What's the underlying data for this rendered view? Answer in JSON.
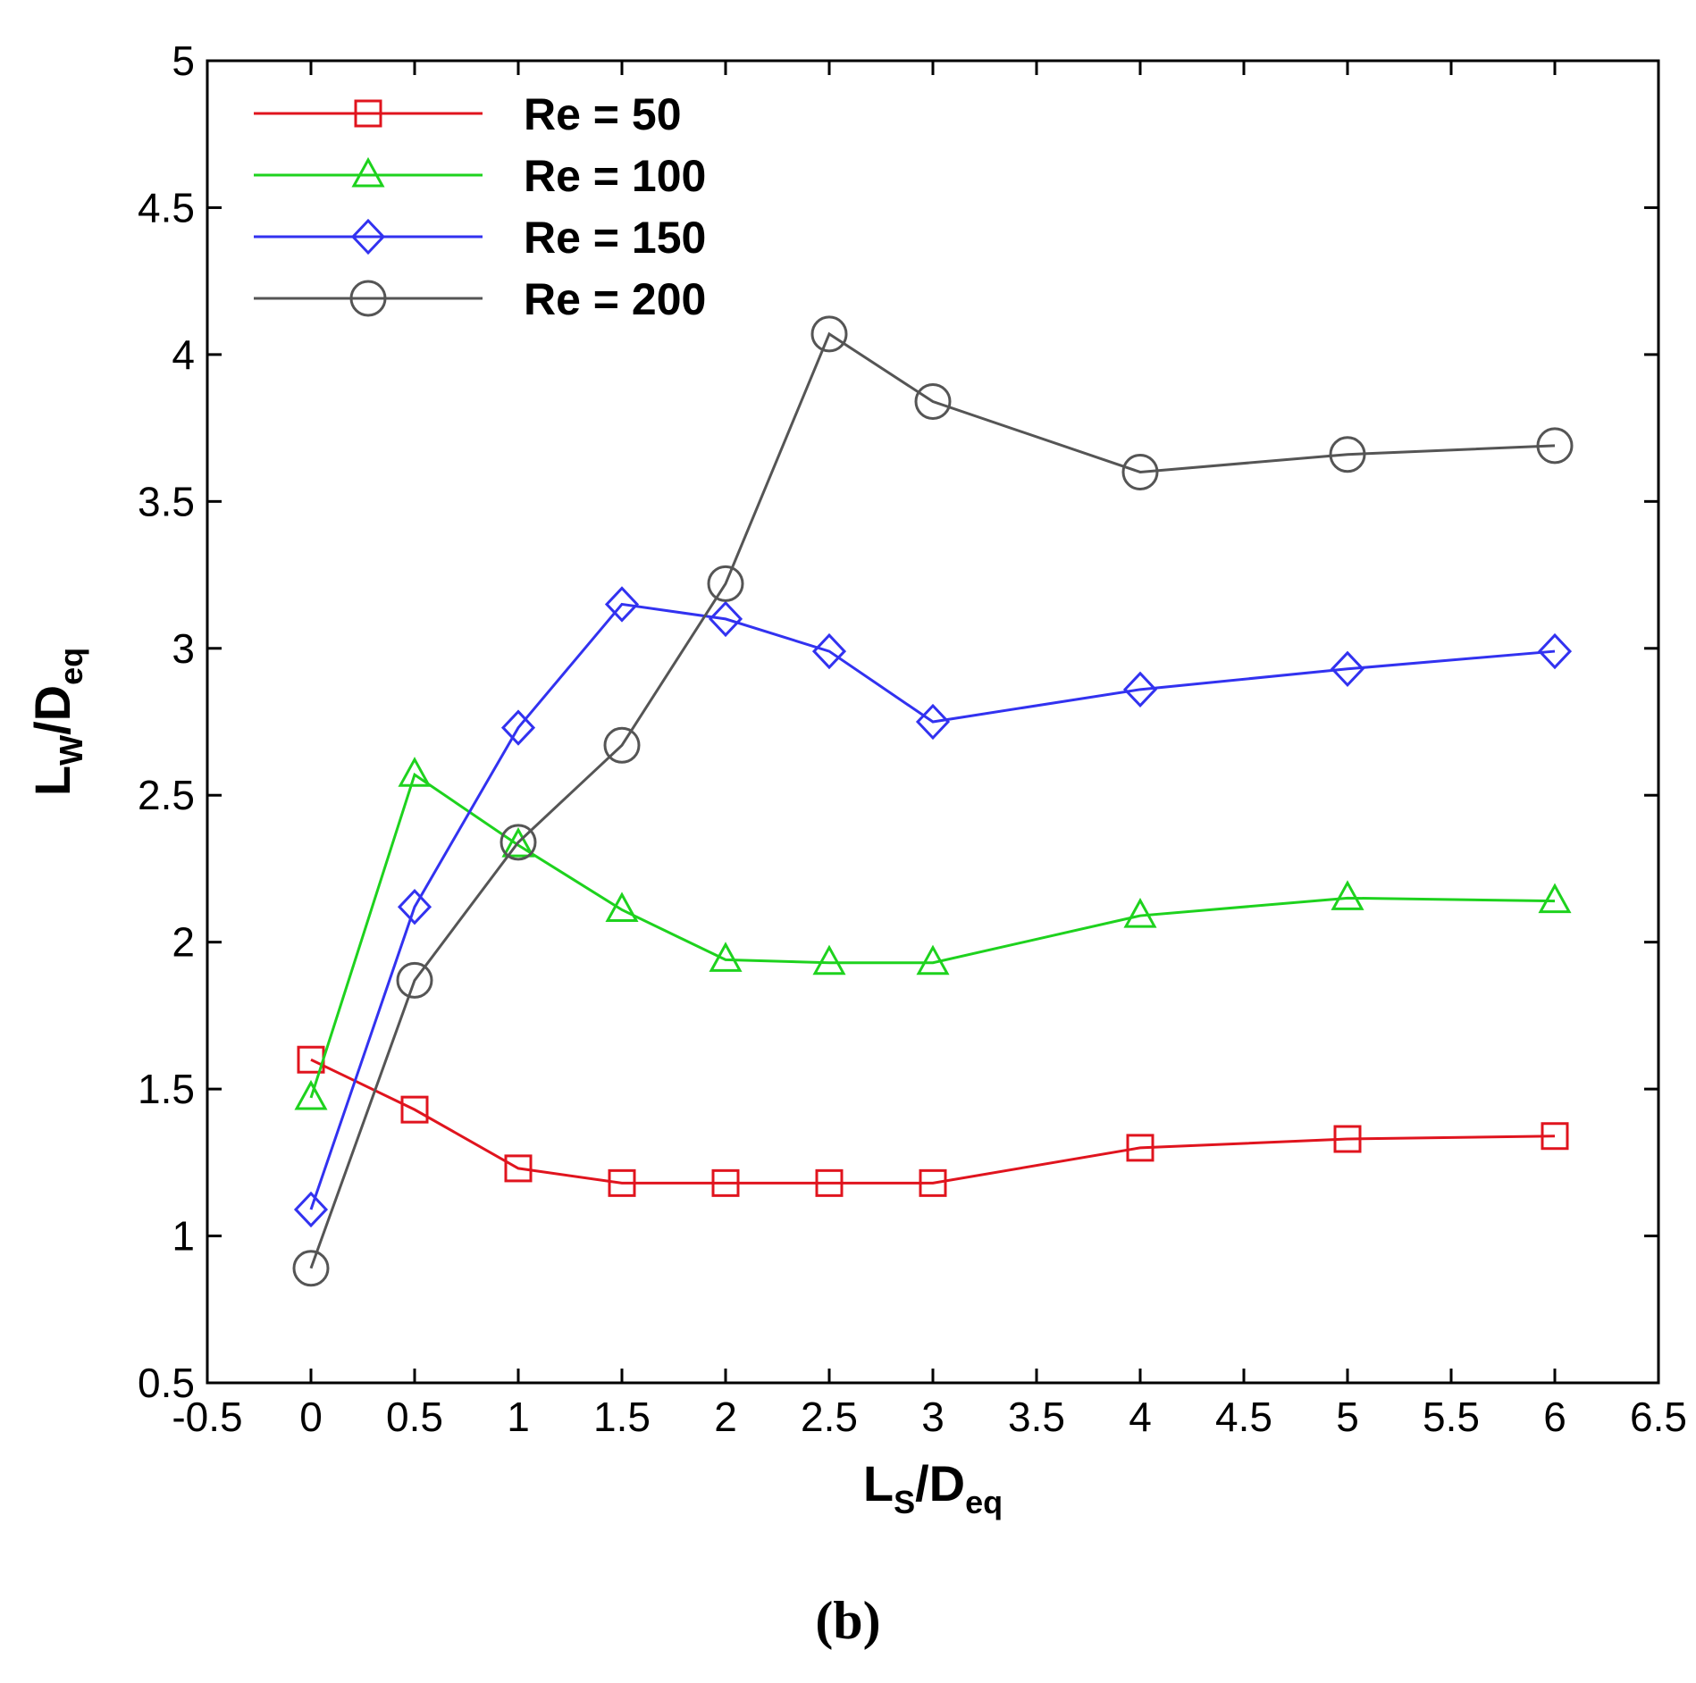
{
  "chart_data": {
    "type": "line",
    "title": "",
    "caption": "(b)",
    "xlabel": {
      "main": "L",
      "sub1": "S",
      "slash": "/D",
      "sub2": "eq"
    },
    "ylabel": {
      "main": "L",
      "sub1": "W",
      "slash": "/D",
      "sub2": "eq"
    },
    "xlim": [
      -0.5,
      6.5
    ],
    "ylim": [
      0.5,
      5
    ],
    "xticks": [
      -0.5,
      0,
      0.5,
      1,
      1.5,
      2,
      2.5,
      3,
      3.5,
      4,
      4.5,
      5,
      5.5,
      6,
      6.5
    ],
    "xtick_labels": [
      "-0.5",
      "0",
      "0.5",
      "1",
      "1.5",
      "2",
      "2.5",
      "3",
      "3.5",
      "4",
      "4.5",
      "5",
      "5.5",
      "6",
      "6.5"
    ],
    "yticks": [
      0.5,
      1,
      1.5,
      2,
      2.5,
      3,
      3.5,
      4,
      4.5,
      5
    ],
    "ytick_labels": [
      "0.5",
      "1",
      "1.5",
      "2",
      "2.5",
      "3",
      "3.5",
      "4",
      "4.5",
      "5"
    ],
    "grid": false,
    "legend_position": "top-left",
    "x": [
      0,
      0.5,
      1,
      1.5,
      2,
      2.5,
      3,
      4,
      5,
      6
    ],
    "series": [
      {
        "name": "Re = 50",
        "color": "#e0141e",
        "marker": "square",
        "values": [
          1.6,
          1.43,
          1.23,
          1.18,
          1.18,
          1.18,
          1.18,
          1.3,
          1.33,
          1.34
        ]
      },
      {
        "name": "Re = 100",
        "color": "#1ed21e",
        "marker": "triangle",
        "values": [
          1.47,
          2.57,
          2.33,
          2.11,
          1.94,
          1.93,
          1.93,
          2.09,
          2.15,
          2.14
        ]
      },
      {
        "name": "Re = 150",
        "color": "#3232f0",
        "marker": "diamond",
        "values": [
          1.09,
          2.12,
          2.73,
          3.15,
          3.1,
          2.99,
          2.75,
          2.86,
          2.93,
          2.99
        ]
      },
      {
        "name": "Re = 200",
        "color": "#555555",
        "marker": "circle",
        "values": [
          0.89,
          1.87,
          2.34,
          2.67,
          3.22,
          4.07,
          3.84,
          3.6,
          3.66,
          3.69
        ]
      }
    ]
  }
}
